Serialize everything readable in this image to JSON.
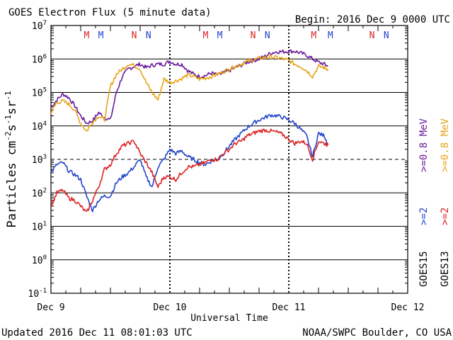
{
  "chart_data": {
    "type": "line",
    "title": "GOES Electron Flux (5 minute data)",
    "begin_label": "Begin: 2016 Dec 9 0000 UTC",
    "xlabel": "Universal Time",
    "ylabel_main": "Particles cm",
    "ylabel_sup1": "-2",
    "ylabel_mid1": "s",
    "ylabel_sup2": "-1",
    "ylabel_mid2": "sr",
    "ylabel_sup3": "-1",
    "x_ticks": [
      "Dec 9",
      "Dec 10",
      "Dec 11",
      "Dec 12"
    ],
    "y_scale": "log",
    "ylim": [
      0.1,
      10000000
    ],
    "y_tick_bases": [
      "10",
      "10",
      "10",
      "10",
      "10",
      "10",
      "10",
      "10",
      "10"
    ],
    "y_tick_exps": [
      "-1",
      "0",
      "1",
      "2",
      "3",
      "4",
      "5",
      "6",
      "7"
    ],
    "threshold_line": 1000,
    "grid": "solid lines at each decade, dashed at 10^3",
    "magnetopause_markers": [
      {
        "label": "M",
        "day": 0.3,
        "color": "#dd2222"
      },
      {
        "label": "M",
        "day": 0.42,
        "color": "#2244cc"
      },
      {
        "label": "N",
        "day": 0.7,
        "color": "#dd2222"
      },
      {
        "label": "N",
        "day": 0.82,
        "color": "#2244cc"
      },
      {
        "label": "M",
        "day": 1.3,
        "color": "#dd2222"
      },
      {
        "label": "M",
        "day": 1.42,
        "color": "#2244cc"
      },
      {
        "label": "N",
        "day": 1.7,
        "color": "#dd2222"
      },
      {
        "label": "N",
        "day": 1.82,
        "color": "#2244cc"
      },
      {
        "label": "M",
        "day": 2.21,
        "color": "#dd2222"
      },
      {
        "label": "M",
        "day": 2.35,
        "color": "#2244cc"
      },
      {
        "label": "N",
        "day": 2.7,
        "color": "#dd2222"
      },
      {
        "label": "N",
        "day": 2.82,
        "color": "#2244cc"
      }
    ],
    "legend": [
      {
        "label": "GOES15 >=2",
        "color": "#2244cc"
      },
      {
        "label": "GOES15 >=0.8",
        "color": "#6a1b9a"
      },
      {
        "label": "GOES13 >=2",
        "color": "#dd2222"
      },
      {
        "label": "GOES13 >=0.8",
        "color": "#e8a317"
      }
    ],
    "legend_text": {
      "goes15": "GOES15",
      "goes13": "GOES13",
      "g15_2": ">=2",
      "g15_08": ">=0.8 MeV",
      "g13_2": ">=2",
      "g13_08": ">=0.8 MeV"
    },
    "series": [
      {
        "key": "g15_08",
        "color": "#6a1b9a",
        "points": [
          [
            0,
            35000
          ],
          [
            0.05,
            60000
          ],
          [
            0.1,
            90000
          ],
          [
            0.15,
            70000
          ],
          [
            0.2,
            40000
          ],
          [
            0.25,
            20000
          ],
          [
            0.3,
            12000
          ],
          [
            0.35,
            14000
          ],
          [
            0.4,
            25000
          ],
          [
            0.45,
            18000
          ],
          [
            0.5,
            15000
          ],
          [
            0.55,
            100000
          ],
          [
            0.6,
            300000
          ],
          [
            0.65,
            500000
          ],
          [
            0.7,
            600000
          ],
          [
            0.75,
            700000
          ],
          [
            0.8,
            550000
          ],
          [
            0.85,
            650000
          ],
          [
            0.9,
            700000
          ],
          [
            0.95,
            700000
          ],
          [
            1.0,
            850000
          ],
          [
            1.05,
            700000
          ],
          [
            1.1,
            700000
          ],
          [
            1.15,
            450000
          ],
          [
            1.2,
            350000
          ],
          [
            1.25,
            300000
          ],
          [
            1.3,
            320000
          ],
          [
            1.35,
            380000
          ],
          [
            1.4,
            330000
          ],
          [
            1.45,
            380000
          ],
          [
            1.5,
            450000
          ],
          [
            1.55,
            550000
          ],
          [
            1.6,
            650000
          ],
          [
            1.65,
            800000
          ],
          [
            1.7,
            900000
          ],
          [
            1.75,
            1000000
          ],
          [
            1.8,
            1200000
          ],
          [
            1.85,
            1500000
          ],
          [
            1.9,
            1650000
          ],
          [
            1.95,
            1650000
          ],
          [
            2.0,
            1700000
          ],
          [
            2.05,
            1700000
          ],
          [
            2.1,
            1500000
          ],
          [
            2.15,
            1300000
          ],
          [
            2.2,
            1000000
          ],
          [
            2.25,
            800000
          ],
          [
            2.3,
            700000
          ],
          [
            2.33,
            600000
          ]
        ]
      },
      {
        "key": "g13_08",
        "color": "#e8a317",
        "points": [
          [
            0,
            25000
          ],
          [
            0.05,
            50000
          ],
          [
            0.1,
            55000
          ],
          [
            0.15,
            45000
          ],
          [
            0.2,
            30000
          ],
          [
            0.25,
            12000
          ],
          [
            0.3,
            7000
          ],
          [
            0.35,
            13000
          ],
          [
            0.4,
            20000
          ],
          [
            0.45,
            15000
          ],
          [
            0.5,
            150000
          ],
          [
            0.55,
            350000
          ],
          [
            0.6,
            500000
          ],
          [
            0.65,
            700000
          ],
          [
            0.7,
            650000
          ],
          [
            0.75,
            500000
          ],
          [
            0.8,
            200000
          ],
          [
            0.85,
            100000
          ],
          [
            0.9,
            60000
          ],
          [
            0.95,
            250000
          ],
          [
            1.0,
            200000
          ],
          [
            1.05,
            220000
          ],
          [
            1.1,
            260000
          ],
          [
            1.15,
            330000
          ],
          [
            1.2,
            300000
          ],
          [
            1.25,
            250000
          ],
          [
            1.3,
            270000
          ],
          [
            1.35,
            300000
          ],
          [
            1.4,
            350000
          ],
          [
            1.45,
            420000
          ],
          [
            1.5,
            500000
          ],
          [
            1.55,
            600000
          ],
          [
            1.6,
            700000
          ],
          [
            1.65,
            850000
          ],
          [
            1.7,
            950000
          ],
          [
            1.75,
            1050000
          ],
          [
            1.8,
            1100000
          ],
          [
            1.85,
            1150000
          ],
          [
            1.9,
            1100000
          ],
          [
            1.95,
            1000000
          ],
          [
            2.0,
            900000
          ],
          [
            2.05,
            700000
          ],
          [
            2.1,
            600000
          ],
          [
            2.15,
            450000
          ],
          [
            2.2,
            300000
          ],
          [
            2.25,
            600000
          ],
          [
            2.3,
            550000
          ],
          [
            2.33,
            500000
          ]
        ]
      },
      {
        "key": "g15_2",
        "color": "#2244cc",
        "points": [
          [
            0,
            400
          ],
          [
            0.05,
            700
          ],
          [
            0.1,
            800
          ],
          [
            0.15,
            450
          ],
          [
            0.2,
            350
          ],
          [
            0.25,
            250
          ],
          [
            0.3,
            80
          ],
          [
            0.35,
            30
          ],
          [
            0.4,
            60
          ],
          [
            0.45,
            80
          ],
          [
            0.5,
            80
          ],
          [
            0.55,
            200
          ],
          [
            0.6,
            300
          ],
          [
            0.65,
            400
          ],
          [
            0.7,
            600
          ],
          [
            0.75,
            1000
          ],
          [
            0.8,
            300
          ],
          [
            0.85,
            150
          ],
          [
            0.9,
            600
          ],
          [
            0.95,
            1000
          ],
          [
            1.0,
            2000
          ],
          [
            1.05,
            1500
          ],
          [
            1.1,
            1800
          ],
          [
            1.15,
            1200
          ],
          [
            1.2,
            1000
          ],
          [
            1.25,
            800
          ],
          [
            1.3,
            700
          ],
          [
            1.35,
            900
          ],
          [
            1.4,
            1000
          ],
          [
            1.45,
            1500
          ],
          [
            1.5,
            2500
          ],
          [
            1.55,
            4000
          ],
          [
            1.6,
            6000
          ],
          [
            1.65,
            9000
          ],
          [
            1.7,
            12000
          ],
          [
            1.75,
            15000
          ],
          [
            1.8,
            18000
          ],
          [
            1.85,
            21000
          ],
          [
            1.9,
            20000
          ],
          [
            1.95,
            18000
          ],
          [
            2.0,
            15000
          ],
          [
            2.05,
            12000
          ],
          [
            2.1,
            8000
          ],
          [
            2.15,
            5000
          ],
          [
            2.2,
            1200
          ],
          [
            2.25,
            6000
          ],
          [
            2.3,
            5000
          ],
          [
            2.33,
            2800
          ]
        ]
      },
      {
        "key": "g13_2",
        "color": "#dd2222",
        "points": [
          [
            0,
            40
          ],
          [
            0.05,
            100
          ],
          [
            0.1,
            120
          ],
          [
            0.15,
            70
          ],
          [
            0.2,
            60
          ],
          [
            0.25,
            40
          ],
          [
            0.3,
            25
          ],
          [
            0.35,
            60
          ],
          [
            0.4,
            150
          ],
          [
            0.45,
            500
          ],
          [
            0.5,
            700
          ],
          [
            0.55,
            1500
          ],
          [
            0.6,
            2500
          ],
          [
            0.65,
            3000
          ],
          [
            0.7,
            3500
          ],
          [
            0.75,
            1500
          ],
          [
            0.8,
            800
          ],
          [
            0.85,
            400
          ],
          [
            0.9,
            150
          ],
          [
            0.95,
            300
          ],
          [
            1.0,
            300
          ],
          [
            1.05,
            250
          ],
          [
            1.1,
            400
          ],
          [
            1.15,
            600
          ],
          [
            1.2,
            600
          ],
          [
            1.25,
            700
          ],
          [
            1.3,
            800
          ],
          [
            1.35,
            1000
          ],
          [
            1.4,
            1000
          ],
          [
            1.45,
            1500
          ],
          [
            1.5,
            2000
          ],
          [
            1.55,
            3000
          ],
          [
            1.6,
            3500
          ],
          [
            1.65,
            5000
          ],
          [
            1.7,
            6000
          ],
          [
            1.75,
            7000
          ],
          [
            1.8,
            7500
          ],
          [
            1.85,
            7000
          ],
          [
            1.9,
            6500
          ],
          [
            1.95,
            5500
          ],
          [
            2.0,
            4000
          ],
          [
            2.05,
            3000
          ],
          [
            2.1,
            3500
          ],
          [
            2.15,
            3000
          ],
          [
            2.2,
            1000
          ],
          [
            2.25,
            3500
          ],
          [
            2.3,
            3000
          ],
          [
            2.33,
            2700
          ]
        ]
      }
    ]
  },
  "footer": {
    "updated": "Updated 2016 Dec 11 08:01:03 UTC",
    "credit": "NOAA/SWPC Boulder, CO USA"
  }
}
